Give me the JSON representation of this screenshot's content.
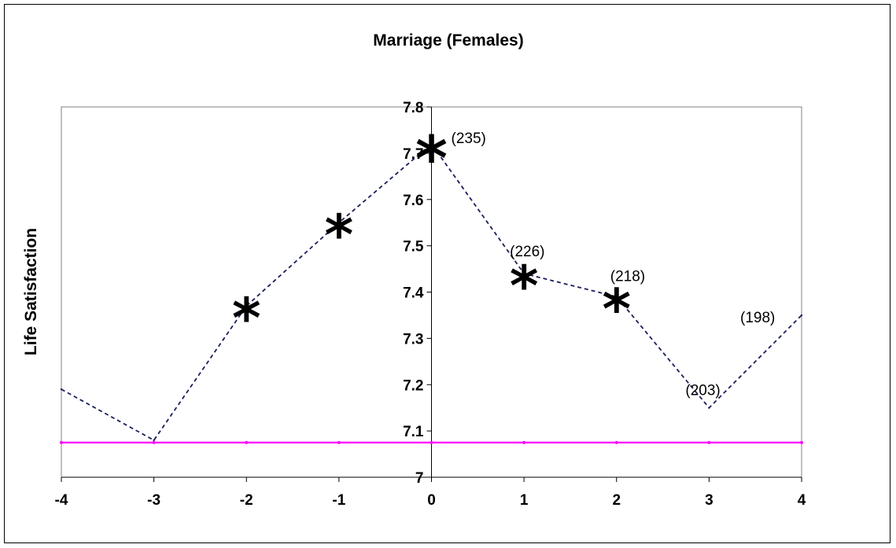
{
  "chart_data": {
    "type": "line",
    "title": "Marriage (Females)",
    "xlabel": "",
    "ylabel": "Life Satisfaction",
    "xlim": [
      -4,
      4
    ],
    "ylim": [
      7,
      7.8
    ],
    "x_ticks": [
      "-4",
      "-3",
      "-2",
      "-1",
      "0",
      "1",
      "2",
      "3",
      "4"
    ],
    "y_ticks": [
      "7",
      "7.1",
      "7.2",
      "7.3",
      "7.4",
      "7.5",
      "7.6",
      "7.7",
      "7.8"
    ],
    "grid": false,
    "legend": "none",
    "series": [
      {
        "color": "#1a1f5c",
        "style": "dashed",
        "x": [
          -4,
          -3,
          -2,
          -1,
          0,
          1,
          2,
          3,
          4
        ],
        "values": [
          7.19,
          7.08,
          7.37,
          7.55,
          7.72,
          7.44,
          7.39,
          7.15,
          7.35
        ]
      },
      {
        "color": "#ff00ff",
        "style": "solid",
        "x": [
          -4,
          -3,
          -2,
          -1,
          0,
          1,
          2,
          3,
          4
        ],
        "values": [
          7.075,
          7.075,
          7.075,
          7.075,
          7.075,
          7.075,
          7.075,
          7.075,
          7.075
        ]
      }
    ],
    "significance_markers": [
      {
        "x": -2,
        "y": 7.37,
        "symbol": "*"
      },
      {
        "x": -1,
        "y": 7.55,
        "symbol": "*"
      },
      {
        "x": 0,
        "y": 7.72,
        "symbol": "*"
      },
      {
        "x": 1,
        "y": 7.44,
        "symbol": "*"
      },
      {
        "x": 2,
        "y": 7.39,
        "symbol": "*"
      }
    ],
    "annotations": [
      {
        "x": 0,
        "y": 7.72,
        "text": "(235)"
      },
      {
        "x": 1,
        "y": 7.44,
        "text": "(226)"
      },
      {
        "x": 2,
        "y": 7.39,
        "text": "(218)"
      },
      {
        "x": 3,
        "y": 7.15,
        "text": "(203)"
      },
      {
        "x": 4,
        "y": 7.35,
        "text": "(198)"
      }
    ]
  }
}
